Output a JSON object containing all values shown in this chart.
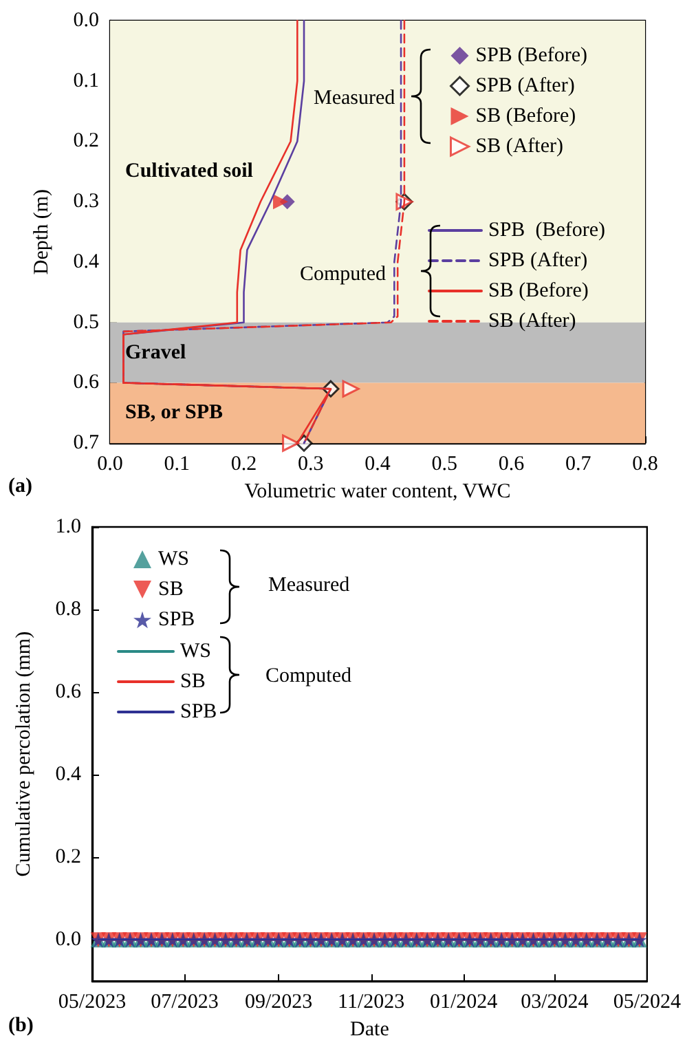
{
  "chart_data": [
    {
      "type": "line",
      "xlabel": "Volumetric water content, VWC",
      "ylabel": "Depth (m)",
      "xlim": [
        0,
        0.8
      ],
      "xticks": [
        {
          "value": 0,
          "label": "0.0"
        },
        {
          "value": 0.1,
          "label": "0.1"
        },
        {
          "value": 0.2,
          "label": "0.2"
        },
        {
          "value": 0.3,
          "label": "0.3"
        },
        {
          "value": 0.4,
          "label": "0.4"
        },
        {
          "value": 0.5,
          "label": "0.5"
        },
        {
          "value": 0.6,
          "label": "0.6"
        },
        {
          "value": 0.7,
          "label": "0.7"
        },
        {
          "value": 0.8,
          "label": "0.8"
        }
      ],
      "ylim": [
        0.7,
        0
      ],
      "yticks": [
        {
          "value": 0,
          "label": "0.0"
        },
        {
          "value": 0.1,
          "label": "0.1"
        },
        {
          "value": 0.2,
          "label": "0.2"
        },
        {
          "value": 0.3,
          "label": "0.3"
        },
        {
          "value": 0.4,
          "label": "0.4"
        },
        {
          "value": 0.5,
          "label": "0.5"
        },
        {
          "value": 0.6,
          "label": "0.6"
        },
        {
          "value": 0.7,
          "label": "0.7"
        }
      ],
      "grid": false,
      "legend": "top right",
      "bands": [
        {
          "axis": "y",
          "from": 0,
          "to": 0.5,
          "label": "Cultivated soil",
          "color": "#f6f6e1"
        },
        {
          "axis": "y",
          "from": 0.5,
          "to": 0.6,
          "label": "Gravel",
          "color": "#bcbcbc"
        },
        {
          "axis": "y",
          "from": 0.6,
          "to": 0.7,
          "label": "SB, or SPB",
          "color": "#f5b98e"
        }
      ],
      "series": [
        {
          "name": "SPB (Before)",
          "type": "scatter",
          "marker": "diamond",
          "color": "#5b2c91",
          "x": [
            0.265
          ],
          "values": [
            0.3
          ]
        },
        {
          "name": "SPB (After)",
          "type": "scatter",
          "marker": "diamond",
          "color": "#000000",
          "x": [
            0.44,
            0.33,
            0.29
          ],
          "values": [
            0.3,
            0.61,
            0.7
          ]
        },
        {
          "name": "SB (Before)",
          "type": "scatter",
          "marker": "triangle",
          "color": "#e8312a",
          "x": [
            0.255
          ],
          "values": [
            0.3
          ]
        },
        {
          "name": "SB (After)",
          "type": "scatter",
          "marker": "triangle",
          "color": "#e8312a",
          "x": [
            0.44,
            0.36,
            0.27
          ],
          "values": [
            0.3,
            0.61,
            0.7
          ]
        },
        {
          "name": "SPB  (Before)",
          "type": "line",
          "line_style": "solid",
          "color": "#5b3fa0",
          "x": [
            0.29,
            0.29,
            0.28,
            0.24,
            0.205,
            0.2,
            0.2,
            0.02,
            0.02,
            0.33,
            0.29
          ],
          "values": [
            0,
            0.1,
            0.2,
            0.3,
            0.38,
            0.45,
            0.5,
            0.52,
            0.6,
            0.61,
            0.7
          ]
        },
        {
          "name": "SPB (After)",
          "type": "line",
          "line_style": "dashed",
          "color": "#5b3fa0",
          "x": [
            0.435,
            0.435,
            0.435,
            0.435,
            0.425,
            0.425,
            0.415,
            0.02,
            0.02,
            0.33,
            0.29
          ],
          "values": [
            0,
            0.1,
            0.2,
            0.3,
            0.4,
            0.49,
            0.5,
            0.515,
            0.6,
            0.61,
            0.7
          ]
        },
        {
          "name": "SB (Before)",
          "type": "line",
          "line_style": "solid",
          "color": "#e8312a",
          "x": [
            0.28,
            0.28,
            0.27,
            0.225,
            0.195,
            0.19,
            0.19,
            0.02,
            0.02,
            0.33,
            0.28
          ],
          "values": [
            0,
            0.1,
            0.2,
            0.3,
            0.38,
            0.45,
            0.5,
            0.52,
            0.6,
            0.61,
            0.7
          ]
        },
        {
          "name": "SB (After)",
          "type": "line",
          "line_style": "dashed",
          "color": "#e8312a",
          "x": [
            0.44,
            0.44,
            0.44,
            0.44,
            0.43,
            0.43,
            0.42,
            0.02,
            0.02,
            0.33,
            0.29
          ],
          "values": [
            0,
            0.1,
            0.2,
            0.3,
            0.4,
            0.49,
            0.5,
            0.515,
            0.6,
            0.61,
            0.7
          ]
        }
      ],
      "annotations": [
        "Measured",
        "Computed",
        "(a)"
      ]
    },
    {
      "type": "line",
      "xlabel": "Date",
      "ylabel": "Cumulative percolation (mm)",
      "xlim": [
        "2023-05-01",
        "2024-05-01"
      ],
      "xticks": [
        {
          "value": "2023-05-01",
          "label": "05/2023"
        },
        {
          "value": "2023-07-01",
          "label": "07/2023"
        },
        {
          "value": "2023-09-01",
          "label": "09/2023"
        },
        {
          "value": "2023-11-01",
          "label": "11/2023"
        },
        {
          "value": "2024-01-01",
          "label": "01/2024"
        },
        {
          "value": "2024-03-01",
          "label": "03/2024"
        },
        {
          "value": "2024-05-01",
          "label": "05/2024"
        }
      ],
      "ylim": [
        -0.1,
        1.0
      ],
      "yticks": [
        {
          "value": 0,
          "label": "0.0"
        },
        {
          "value": 0.2,
          "label": "0.2"
        },
        {
          "value": 0.4,
          "label": "0.4"
        },
        {
          "value": 0.6,
          "label": "0.6"
        },
        {
          "value": 0.8,
          "label": "0.8"
        },
        {
          "value": 1.0,
          "label": "1.0"
        }
      ],
      "grid": false,
      "legend": "top left",
      "x": [
        "2023-05-05",
        "2023-05-12",
        "2023-05-19",
        "2023-05-26",
        "2023-06-02",
        "2023-06-09",
        "2023-06-16",
        "2023-06-23",
        "2023-06-30",
        "2023-07-07",
        "2023-07-14",
        "2023-07-21",
        "2023-07-28",
        "2023-08-04",
        "2023-08-11",
        "2023-08-18",
        "2023-08-25",
        "2023-09-01",
        "2023-09-08",
        "2023-09-15",
        "2023-09-22",
        "2023-09-29",
        "2023-10-06",
        "2023-10-13",
        "2023-10-20",
        "2023-10-27",
        "2023-11-03",
        "2023-11-10",
        "2023-11-17",
        "2023-11-24",
        "2023-12-01",
        "2023-12-08",
        "2023-12-15",
        "2023-12-22",
        "2023-12-29",
        "2024-01-05",
        "2024-01-12",
        "2024-01-19",
        "2024-01-26",
        "2024-02-02",
        "2024-02-09",
        "2024-02-16",
        "2024-02-23",
        "2024-03-01",
        "2024-03-08",
        "2024-03-15",
        "2024-03-22",
        "2024-03-29",
        "2024-04-05",
        "2024-04-12",
        "2024-04-19",
        "2024-04-26"
      ],
      "series": [
        {
          "name": "WS",
          "type": "scatter",
          "marker": "triangle",
          "color": "#2a8a86",
          "values": [
            0,
            0,
            0,
            0,
            0,
            0,
            0,
            0,
            0,
            0,
            0,
            0,
            0,
            0,
            0,
            0,
            0,
            0,
            0,
            0,
            0,
            0,
            0,
            0,
            0,
            0,
            0,
            0,
            0,
            0,
            0,
            0,
            0,
            0,
            0,
            0,
            0,
            0,
            0,
            0,
            0,
            0,
            0,
            0,
            0,
            0,
            0,
            0,
            0,
            0,
            0,
            0
          ]
        },
        {
          "name": "SB",
          "type": "scatter",
          "marker": "triangle",
          "color": "#e8312a",
          "values": [
            0,
            0,
            0,
            0,
            0,
            0,
            0,
            0,
            0,
            0,
            0,
            0,
            0,
            0,
            0,
            0,
            0,
            0,
            0,
            0,
            0,
            0,
            0,
            0,
            0,
            0,
            0,
            0,
            0,
            0,
            0,
            0,
            0,
            0,
            0,
            0,
            0,
            0,
            0,
            0,
            0,
            0,
            0,
            0,
            0,
            0,
            0,
            0,
            0,
            0,
            0,
            0
          ]
        },
        {
          "name": "SPB",
          "type": "scatter",
          "marker": "star",
          "color": "#2e3192",
          "values": [
            0,
            0,
            0,
            0,
            0,
            0,
            0,
            0,
            0,
            0,
            0,
            0,
            0,
            0,
            0,
            0,
            0,
            0,
            0,
            0,
            0,
            0,
            0,
            0,
            0,
            0,
            0,
            0,
            0,
            0,
            0,
            0,
            0,
            0,
            0,
            0,
            0,
            0,
            0,
            0,
            0,
            0,
            0,
            0,
            0,
            0,
            0,
            0,
            0,
            0,
            0,
            0
          ]
        },
        {
          "name": "WS",
          "type": "line",
          "line_style": "solid",
          "color": "#2a8a86",
          "values": [
            0,
            0,
            0,
            0,
            0,
            0,
            0,
            0,
            0,
            0,
            0,
            0,
            0,
            0,
            0,
            0,
            0,
            0,
            0,
            0,
            0,
            0,
            0,
            0,
            0,
            0,
            0,
            0,
            0,
            0,
            0,
            0,
            0,
            0,
            0,
            0,
            0,
            0,
            0,
            0,
            0,
            0,
            0,
            0,
            0,
            0,
            0,
            0,
            0,
            0,
            0,
            0
          ]
        },
        {
          "name": "SB",
          "type": "line",
          "line_style": "solid",
          "color": "#e8312a",
          "values": [
            0,
            0,
            0,
            0,
            0,
            0,
            0,
            0,
            0,
            0,
            0,
            0,
            0,
            0,
            0,
            0,
            0,
            0,
            0,
            0,
            0,
            0,
            0,
            0,
            0,
            0,
            0,
            0,
            0,
            0,
            0,
            0,
            0,
            0,
            0,
            0,
            0,
            0,
            0,
            0,
            0,
            0,
            0,
            0,
            0,
            0,
            0,
            0,
            0,
            0,
            0,
            0
          ]
        },
        {
          "name": "SPB",
          "type": "line",
          "line_style": "solid",
          "color": "#2e3192",
          "values": [
            0,
            0,
            0,
            0,
            0,
            0,
            0,
            0,
            0,
            0,
            0,
            0,
            0,
            0,
            0,
            0,
            0,
            0,
            0,
            0,
            0,
            0,
            0,
            0,
            0,
            0,
            0,
            0,
            0,
            0,
            0,
            0,
            0,
            0,
            0,
            0,
            0,
            0,
            0,
            0,
            0,
            0,
            0,
            0,
            0,
            0,
            0,
            0,
            0,
            0,
            0,
            0
          ]
        }
      ],
      "annotations": [
        "Measured",
        "Computed",
        "(b)"
      ]
    }
  ]
}
